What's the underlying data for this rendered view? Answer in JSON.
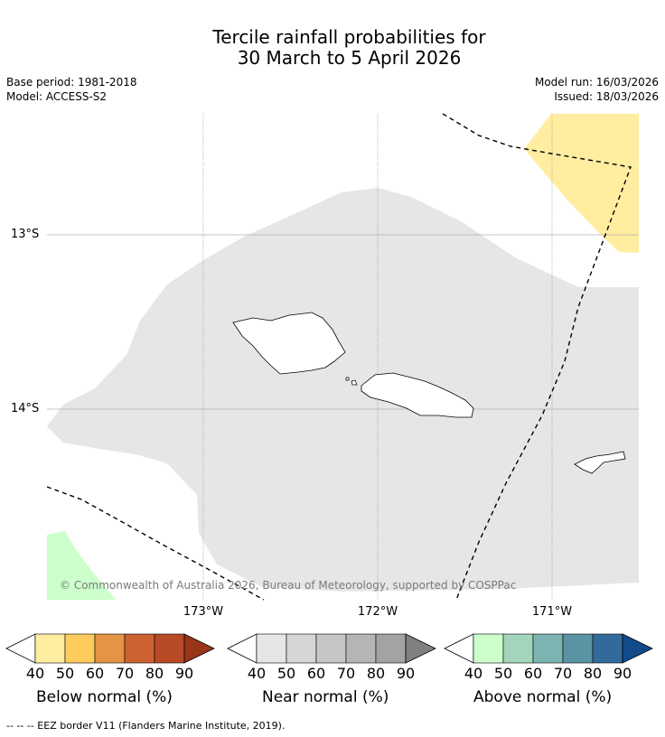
{
  "title": {
    "line1": "Tercile rainfall probabilities for",
    "line2": "30 March to 5 April 2026"
  },
  "meta": {
    "base_period": "Base period: 1981-2018",
    "model": "Model: ACCESS-S2",
    "model_run": "Model run: 16/03/2026",
    "issued": "Issued: 18/03/2026"
  },
  "map": {
    "lat_labels": [
      "13°S",
      "14°S"
    ],
    "lon_labels": [
      "173°W",
      "172°W",
      "171°W"
    ],
    "copyright": "© Commonwealth of Australia 2026, Bureau of Meteorology, supported by COSPPac",
    "fill_colors": {
      "near_normal": "#e6e6e6",
      "below_normal_light": "#ffeda0",
      "above_normal_light": "#ccffcc"
    }
  },
  "legend": {
    "below": {
      "label": "Below normal (%)",
      "ticks": [
        "40",
        "50",
        "60",
        "70",
        "80",
        "90"
      ],
      "colors": [
        "#ffffff",
        "#ffeda0",
        "#fecc5c",
        "#e49444",
        "#cd6231",
        "#b84a25",
        "#9a3518"
      ]
    },
    "near": {
      "label": "Near normal (%)",
      "ticks": [
        "40",
        "50",
        "60",
        "70",
        "80",
        "90"
      ],
      "colors": [
        "#ffffff",
        "#e6e6e6",
        "#d6d6d6",
        "#c6c6c6",
        "#b5b5b5",
        "#a3a3a3",
        "#808080"
      ]
    },
    "above": {
      "label": "Above normal (%)",
      "ticks": [
        "40",
        "50",
        "60",
        "70",
        "80",
        "90"
      ],
      "colors": [
        "#ffffff",
        "#ccffcc",
        "#a3d5bd",
        "#7db4b1",
        "#5a93a3",
        "#336a9b",
        "#134a8a"
      ]
    }
  },
  "footnote": "--  --  -- EEZ border V11 (Flanders Marine Institute, 2019)."
}
